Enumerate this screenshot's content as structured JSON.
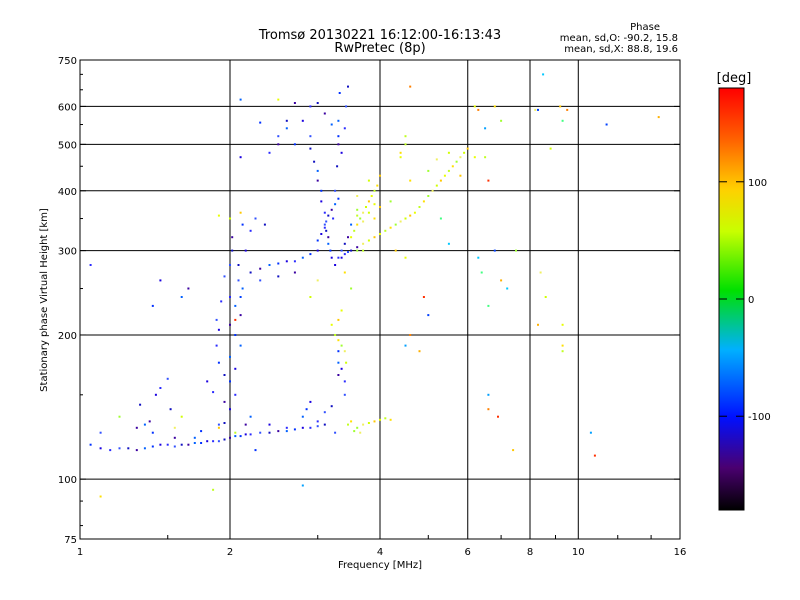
{
  "header": {
    "title_line1": "Tromsø 20130221 16:12:00-16:13:43",
    "title_line2": "RwPretec (8p)",
    "stats_heading": "Phase",
    "stats_line1": "mean, sd,O: -90.2, 15.8",
    "stats_line2": "mean, sd,X:  88.8, 19.6"
  },
  "colorbar": {
    "unit_label": "[deg]",
    "tick_labels": [
      "100",
      "0",
      "-100"
    ],
    "range": [
      -180,
      180
    ]
  },
  "chart_data": {
    "type": "scatter",
    "title": "Tromsø 20130221 16:12:00-16:13:43",
    "subtitle": "RwPretec (8p)",
    "xlabel": "Frequency [MHz]",
    "ylabel": "Stationary phase Virtual Height [km]",
    "x_scale": "log",
    "y_scale": "log",
    "xlim": [
      1,
      16
    ],
    "ylim": [
      75,
      750
    ],
    "x_ticks": [
      1,
      2,
      4,
      6,
      8,
      10,
      16
    ],
    "x_tick_labels": [
      "1",
      "2",
      "4",
      "6",
      "8",
      "10",
      "16"
    ],
    "y_ticks": [
      75,
      100,
      200,
      300,
      400,
      500,
      600,
      750
    ],
    "y_tick_labels": [
      "75",
      "100",
      "200",
      "300",
      "400",
      "500",
      "600",
      "750"
    ],
    "grid": true,
    "colorbar_label": "[deg]",
    "color_scale": [
      -180,
      180
    ],
    "series": [
      {
        "points": [
          [
            1.05,
            118
          ],
          [
            1.1,
            116
          ],
          [
            1.15,
            115
          ],
          [
            1.2,
            116
          ],
          [
            1.25,
            116
          ],
          [
            1.3,
            115
          ],
          [
            1.35,
            116
          ],
          [
            1.4,
            117
          ],
          [
            1.45,
            118
          ],
          [
            1.5,
            118
          ],
          [
            1.55,
            117
          ],
          [
            1.6,
            118
          ],
          [
            1.65,
            118
          ],
          [
            1.7,
            119
          ],
          [
            1.75,
            119
          ],
          [
            1.8,
            120
          ],
          [
            1.85,
            120
          ],
          [
            1.9,
            120
          ],
          [
            1.95,
            121
          ],
          [
            2.0,
            122
          ],
          [
            2.05,
            123
          ],
          [
            2.1,
            123
          ],
          [
            2.15,
            124
          ],
          [
            2.2,
            124
          ],
          [
            2.3,
            125
          ],
          [
            2.4,
            125
          ],
          [
            2.5,
            126
          ],
          [
            2.6,
            126
          ],
          [
            2.7,
            127
          ],
          [
            2.8,
            128
          ],
          [
            2.9,
            128
          ],
          [
            3.0,
            129
          ],
          [
            3.1,
            130
          ],
          [
            1.3,
            128
          ],
          [
            1.35,
            130
          ],
          [
            1.4,
            125
          ],
          [
            1.42,
            150
          ],
          [
            1.45,
            155
          ],
          [
            1.5,
            162
          ],
          [
            1.52,
            140
          ],
          [
            1.55,
            122
          ],
          [
            1.7,
            122
          ],
          [
            1.75,
            126
          ],
          [
            1.8,
            160
          ],
          [
            1.85,
            152
          ],
          [
            1.9,
            130
          ],
          [
            1.95,
            131
          ],
          [
            2.0,
            210
          ],
          [
            2.0,
            180
          ],
          [
            2.0,
            160
          ],
          [
            2.0,
            140
          ],
          [
            2.0,
            240
          ],
          [
            2.0,
            280
          ],
          [
            2.02,
            300
          ],
          [
            2.02,
            320
          ],
          [
            2.05,
            230
          ],
          [
            2.05,
            200
          ],
          [
            2.05,
            170
          ],
          [
            2.05,
            150
          ],
          [
            2.08,
            260
          ],
          [
            2.08,
            280
          ],
          [
            2.1,
            220
          ],
          [
            2.1,
            190
          ],
          [
            1.9,
            175
          ],
          [
            1.9,
            205
          ],
          [
            1.92,
            235
          ],
          [
            1.95,
            265
          ],
          [
            1.95,
            165
          ],
          [
            1.95,
            145
          ],
          [
            2.12,
            250
          ],
          [
            2.12,
            340
          ],
          [
            2.15,
            300
          ],
          [
            1.88,
            190
          ],
          [
            1.88,
            215
          ],
          [
            2.2,
            270
          ],
          [
            2.3,
            275
          ],
          [
            2.4,
            280
          ],
          [
            2.5,
            282
          ],
          [
            2.6,
            285
          ],
          [
            2.7,
            285
          ],
          [
            2.3,
            260
          ],
          [
            2.5,
            265
          ],
          [
            2.7,
            270
          ],
          [
            2.8,
            290
          ],
          [
            2.9,
            295
          ],
          [
            3.0,
            300
          ],
          [
            2.4,
            480
          ],
          [
            2.5,
            520
          ],
          [
            2.6,
            560
          ],
          [
            2.5,
            500
          ],
          [
            2.6,
            540
          ],
          [
            2.7,
            500
          ],
          [
            2.8,
            560
          ],
          [
            2.9,
            600
          ],
          [
            2.9,
            520
          ],
          [
            2.95,
            460
          ],
          [
            3.0,
            420
          ],
          [
            3.0,
            440
          ],
          [
            3.05,
            400
          ],
          [
            3.05,
            380
          ],
          [
            3.1,
            360
          ],
          [
            3.1,
            340
          ],
          [
            3.12,
            330
          ],
          [
            3.15,
            320
          ],
          [
            3.15,
            310
          ],
          [
            3.18,
            300
          ],
          [
            3.2,
            290
          ],
          [
            3.22,
            350
          ],
          [
            3.25,
            400
          ],
          [
            3.28,
            450
          ],
          [
            3.3,
            500
          ],
          [
            3.3,
            560
          ],
          [
            3.32,
            640
          ],
          [
            3.25,
            280
          ],
          [
            3.3,
            290
          ],
          [
            3.35,
            300
          ],
          [
            3.4,
            310
          ],
          [
            3.45,
            320
          ],
          [
            3.5,
            340
          ],
          [
            3.0,
            315
          ],
          [
            3.05,
            325
          ],
          [
            3.1,
            335
          ],
          [
            3.12,
            345
          ],
          [
            3.15,
            355
          ],
          [
            3.2,
            365
          ],
          [
            3.25,
            375
          ],
          [
            3.3,
            385
          ],
          [
            3.35,
            290
          ],
          [
            3.4,
            295
          ],
          [
            3.45,
            298
          ],
          [
            3.5,
            300
          ],
          [
            3.6,
            305
          ],
          [
            2.8,
            135
          ],
          [
            2.85,
            140
          ],
          [
            2.9,
            145
          ],
          [
            3.0,
            132
          ],
          [
            3.1,
            138
          ],
          [
            3.2,
            142
          ],
          [
            3.3,
            165
          ],
          [
            3.3,
            175
          ],
          [
            3.3,
            185
          ],
          [
            3.35,
            170
          ],
          [
            3.4,
            160
          ],
          [
            3.4,
            150
          ],
          [
            3.0,
            610
          ],
          [
            3.1,
            580
          ],
          [
            3.2,
            550
          ],
          [
            3.3,
            520
          ],
          [
            3.35,
            480
          ],
          [
            3.4,
            540
          ],
          [
            3.42,
            600
          ],
          [
            3.45,
            660
          ],
          [
            2.7,
            610
          ],
          [
            2.1,
            620
          ],
          [
            2.3,
            555
          ],
          [
            2.1,
            470
          ],
          [
            2.2,
            330
          ],
          [
            2.25,
            350
          ],
          [
            2.35,
            340
          ],
          [
            1.65,
            250
          ],
          [
            1.6,
            240
          ],
          [
            1.4,
            230
          ],
          [
            1.45,
            260
          ],
          [
            1.05,
            280
          ],
          [
            1.1,
            125
          ],
          [
            2.9,
            490
          ],
          [
            2.15,
            130
          ],
          [
            2.2,
            135
          ],
          [
            2.25,
            115
          ],
          [
            2.4,
            130
          ],
          [
            2.6,
            128
          ],
          [
            3.25,
            125
          ],
          [
            1.32,
            143
          ],
          [
            1.38,
            132
          ]
        ],
        "color": "blue/purple O-mode"
      },
      {
        "points": [
          [
            3.5,
            320
          ],
          [
            3.55,
            330
          ],
          [
            3.6,
            340
          ],
          [
            3.65,
            350
          ],
          [
            3.7,
            360
          ],
          [
            3.75,
            370
          ],
          [
            3.8,
            380
          ],
          [
            3.85,
            390
          ],
          [
            3.9,
            400
          ],
          [
            3.95,
            410
          ],
          [
            3.6,
            300
          ],
          [
            3.7,
            310
          ],
          [
            3.8,
            315
          ],
          [
            3.9,
            320
          ],
          [
            4.0,
            325
          ],
          [
            4.1,
            330
          ],
          [
            4.2,
            335
          ],
          [
            4.3,
            340
          ],
          [
            4.4,
            345
          ],
          [
            4.5,
            350
          ],
          [
            4.6,
            355
          ],
          [
            4.7,
            360
          ],
          [
            4.8,
            370
          ],
          [
            4.9,
            380
          ],
          [
            5.0,
            390
          ],
          [
            5.1,
            400
          ],
          [
            5.2,
            410
          ],
          [
            5.3,
            420
          ],
          [
            5.4,
            430
          ],
          [
            5.5,
            440
          ],
          [
            5.6,
            450
          ],
          [
            5.7,
            460
          ],
          [
            5.8,
            470
          ],
          [
            5.9,
            480
          ],
          [
            6.0,
            490
          ],
          [
            3.2,
            210
          ],
          [
            3.25,
            200
          ],
          [
            3.3,
            195
          ],
          [
            3.35,
            190
          ],
          [
            3.4,
            185
          ],
          [
            3.42,
            175
          ],
          [
            3.3,
            215
          ],
          [
            3.35,
            225
          ],
          [
            3.45,
            130
          ],
          [
            3.5,
            132
          ],
          [
            3.6,
            128
          ],
          [
            3.7,
            130
          ],
          [
            3.8,
            131
          ],
          [
            3.9,
            132
          ],
          [
            4.0,
            133
          ],
          [
            4.1,
            134
          ],
          [
            4.2,
            133
          ],
          [
            3.55,
            126
          ],
          [
            3.65,
            125
          ],
          [
            2.0,
            350
          ],
          [
            2.1,
            360
          ],
          [
            1.9,
            355
          ],
          [
            3.7,
            300
          ],
          [
            3.9,
            350
          ],
          [
            4.2,
            380
          ],
          [
            3.6,
            390
          ],
          [
            3.8,
            420
          ],
          [
            4.0,
            430
          ],
          [
            4.4,
            470
          ],
          [
            4.5,
            500
          ],
          [
            4.6,
            420
          ],
          [
            5.0,
            440
          ],
          [
            5.2,
            465
          ],
          [
            5.5,
            480
          ],
          [
            4.3,
            300
          ],
          [
            4.5,
            290
          ],
          [
            1.85,
            95
          ],
          [
            1.1,
            92
          ],
          [
            1.2,
            135
          ],
          [
            1.55,
            128
          ],
          [
            1.6,
            135
          ],
          [
            1.9,
            128
          ],
          [
            2.5,
            620
          ],
          [
            2.05,
            125
          ],
          [
            3.4,
            270
          ],
          [
            3.5,
            250
          ],
          [
            3.0,
            260
          ],
          [
            2.9,
            240
          ],
          [
            5.8,
            430
          ],
          [
            6.2,
            470
          ],
          [
            6.5,
            470
          ],
          [
            6.8,
            600
          ],
          [
            7.0,
            560
          ],
          [
            8.2,
            590
          ],
          [
            8.8,
            490
          ],
          [
            9.2,
            600
          ],
          [
            9.3,
            210
          ],
          [
            9.3,
            185
          ],
          [
            9.3,
            190
          ],
          [
            7.5,
            300
          ],
          [
            8.4,
            270
          ],
          [
            8.6,
            240
          ],
          [
            7.4,
            115
          ],
          [
            6.2,
            600
          ],
          [
            4.5,
            520
          ],
          [
            4.4,
            480
          ],
          [
            3.6,
            365
          ],
          [
            3.7,
            345
          ],
          [
            3.8,
            360
          ],
          [
            4.0,
            370
          ],
          [
            3.9,
            375
          ],
          [
            3.6,
            355
          ]
        ],
        "color": "yellow/green X-mode"
      },
      {
        "points": [
          [
            6.3,
            590
          ],
          [
            6.5,
            540
          ],
          [
            6.6,
            420
          ],
          [
            6.8,
            300
          ],
          [
            7.0,
            260
          ],
          [
            7.2,
            250
          ],
          [
            6.6,
            230
          ],
          [
            6.6,
            140
          ],
          [
            6.6,
            150
          ],
          [
            6.9,
            135
          ],
          [
            8.3,
            590
          ],
          [
            8.3,
            210
          ],
          [
            8.5,
            700
          ],
          [
            9.3,
            560
          ],
          [
            9.5,
            590
          ],
          [
            10.6,
            125
          ],
          [
            10.8,
            112
          ],
          [
            11.4,
            550
          ],
          [
            14.5,
            570
          ],
          [
            6.3,
            290
          ],
          [
            6.4,
            270
          ],
          [
            4.6,
            200
          ],
          [
            4.5,
            190
          ],
          [
            4.9,
            240
          ],
          [
            5.0,
            220
          ],
          [
            4.8,
            185
          ],
          [
            5.5,
            310
          ],
          [
            5.3,
            350
          ],
          [
            4.6,
            660
          ],
          [
            2.8,
            97
          ],
          [
            2.05,
            215
          ],
          [
            2.1,
            240
          ]
        ],
        "color": "sparse scatter"
      }
    ]
  }
}
